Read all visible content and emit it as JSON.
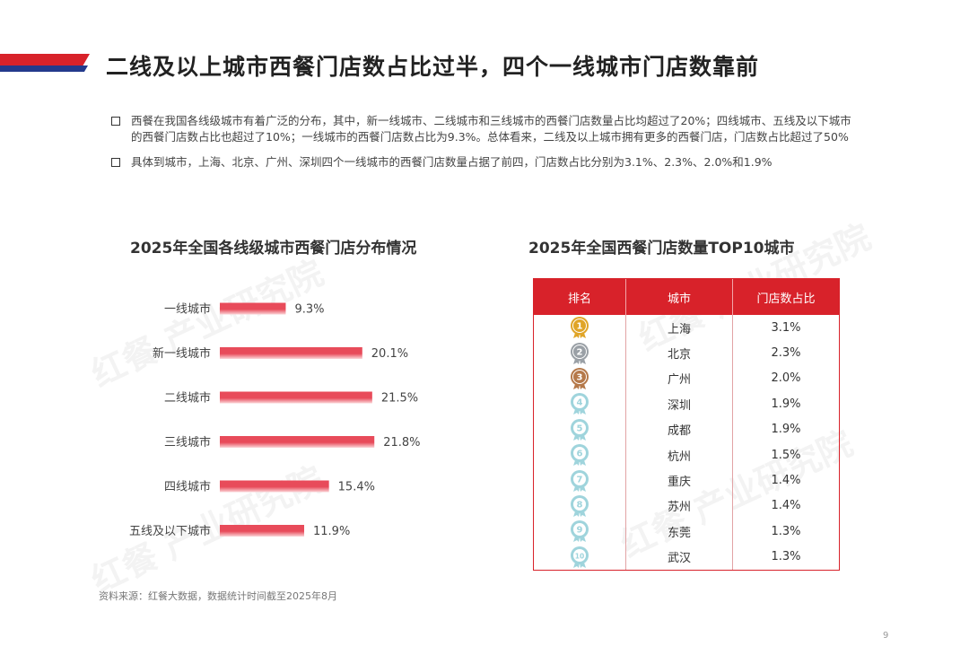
{
  "title": "二线及以上城市西餐门店数占比过半，四个一线城市门店数靠前",
  "bullets": [
    "西餐在我国各线级城市有着广泛的分布，其中，新一线城市、二线城市和三线城市的西餐门店数量占比均超过了20%；四线城市、五线及以下城市的西餐门店数占比也超过了10%；一线城市的西餐门店数占比为9.3%。总体看来，二线及以上城市拥有更多的西餐门店，门店数占比超过了50%",
    "具体到城市，上海、北京、广州、深圳四个一线城市的西餐门店数量占据了前四，门店数占比分别为3.1%、2.3%、2.0%和1.9%"
  ],
  "chart_data": [
    {
      "type": "bar",
      "orientation": "horizontal",
      "title": "2025年全国各线级城市西餐门店分布情况",
      "categories": [
        "一线城市",
        "新一线城市",
        "二线城市",
        "三线城市",
        "四线城市",
        "五线及以下城市"
      ],
      "values": [
        9.3,
        20.1,
        21.5,
        21.8,
        15.4,
        11.9
      ],
      "labels": [
        "9.3%",
        "20.1%",
        "21.5%",
        "21.8%",
        "15.4%",
        "11.9%"
      ],
      "unit": "%",
      "xlim": [
        0,
        25
      ],
      "grid": false,
      "colors": [
        "#e84b5a",
        "#fbd5d8"
      ]
    },
    {
      "type": "table",
      "title": "2025年全国西餐门店数量TOP10城市",
      "columns": [
        "排名",
        "城市",
        "门店数占比"
      ],
      "rows": [
        {
          "rank": "1",
          "city": "上海",
          "share": "3.1%"
        },
        {
          "rank": "2",
          "city": "北京",
          "share": "2.3%"
        },
        {
          "rank": "3",
          "city": "广州",
          "share": "2.0%"
        },
        {
          "rank": "4",
          "city": "深圳",
          "share": "1.9%"
        },
        {
          "rank": "5",
          "city": "成都",
          "share": "1.9%"
        },
        {
          "rank": "6",
          "city": "杭州",
          "share": "1.5%"
        },
        {
          "rank": "7",
          "city": "重庆",
          "share": "1.4%"
        },
        {
          "rank": "8",
          "city": "苏州",
          "share": "1.4%"
        },
        {
          "rank": "9",
          "city": "东莞",
          "share": "1.3%"
        },
        {
          "rank": "10",
          "city": "武汉",
          "share": "1.3%"
        }
      ]
    }
  ],
  "source": "资料来源：红餐大数据，数据统计时间截至2025年8月",
  "page_number": "9",
  "watermark": "红餐 产业研究院",
  "colors": {
    "accent_red": "#d8222a",
    "accent_blue": "#233a8c",
    "gold": "#e0a528",
    "silver": "#9aa0a6",
    "bronze": "#b5794a",
    "light_blue": "#9fd4dc"
  }
}
